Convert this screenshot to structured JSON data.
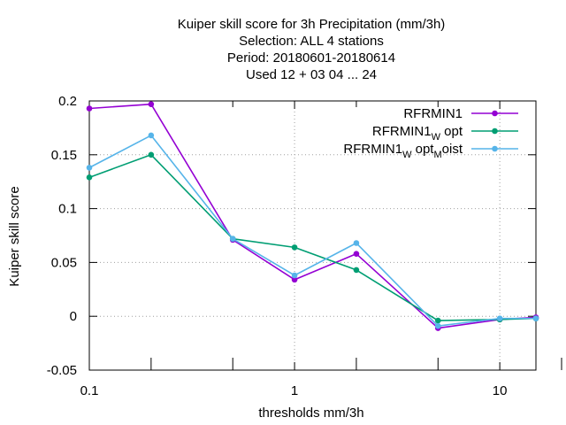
{
  "chart_data": {
    "type": "line",
    "title_lines": [
      "Kuiper skill score  for 3h Precipitation (mm/3h)",
      "Selection: ALL      4 stations",
      "Period: 20180601-20180614",
      "Used  12 + 03 04 ... 24"
    ],
    "xlabel": "thresholds mm/3h",
    "ylabel": "Kuiper skill score",
    "x_scale": "log",
    "xlim": [
      0.1,
      15
    ],
    "ylim": [
      -0.05,
      0.2
    ],
    "x_ticks": [
      {
        "value": 0.1,
        "label": "0.1"
      },
      {
        "value": 1,
        "label": "1"
      },
      {
        "value": 10,
        "label": "10"
      }
    ],
    "x_minor_ticks": [
      0.2,
      0.5,
      2,
      5,
      20
    ],
    "y_ticks": [
      {
        "value": 0.2,
        "label": "0.2"
      },
      {
        "value": 0.15,
        "label": "0.15"
      },
      {
        "value": 0.1,
        "label": "0.1"
      },
      {
        "value": 0.05,
        "label": "0.05"
      },
      {
        "value": 0,
        "label": "0"
      },
      {
        "value": -0.05,
        "label": "-0.05"
      }
    ],
    "grid": true,
    "legend_position": "top-right",
    "series": [
      {
        "name": "RFRMIN1",
        "legend": {
          "parts": [
            {
              "text": "RFRMIN1",
              "sub": false
            }
          ]
        },
        "color": "#9400d3",
        "x": [
          0.1,
          0.2,
          0.5,
          1,
          2,
          5,
          10,
          15
        ],
        "y": [
          0.193,
          0.197,
          0.071,
          0.034,
          0.058,
          -0.011,
          -0.003,
          -0.001
        ]
      },
      {
        "name": "RFRMIN1_W opt",
        "legend": {
          "parts": [
            {
              "text": "RFRMIN1",
              "sub": false
            },
            {
              "text": "W",
              "sub": true
            },
            {
              "text": " opt",
              "sub": false
            }
          ]
        },
        "color": "#009e73",
        "x": [
          0.1,
          0.2,
          0.5,
          1,
          2,
          5,
          10,
          15
        ],
        "y": [
          0.129,
          0.15,
          0.072,
          0.064,
          0.043,
          -0.004,
          -0.003,
          -0.002
        ]
      },
      {
        "name": "RFRMIN1_W opt_M oist",
        "legend": {
          "parts": [
            {
              "text": "RFRMIN1",
              "sub": false
            },
            {
              "text": "W",
              "sub": true
            },
            {
              "text": " opt",
              "sub": false
            },
            {
              "text": "M",
              "sub": true
            },
            {
              "text": "oist",
              "sub": false
            }
          ]
        },
        "color": "#56b4e9",
        "x": [
          0.1,
          0.2,
          0.5,
          1,
          2,
          5,
          10,
          15
        ],
        "y": [
          0.138,
          0.168,
          0.072,
          0.038,
          0.068,
          -0.009,
          -0.002,
          -0.002
        ]
      }
    ]
  }
}
